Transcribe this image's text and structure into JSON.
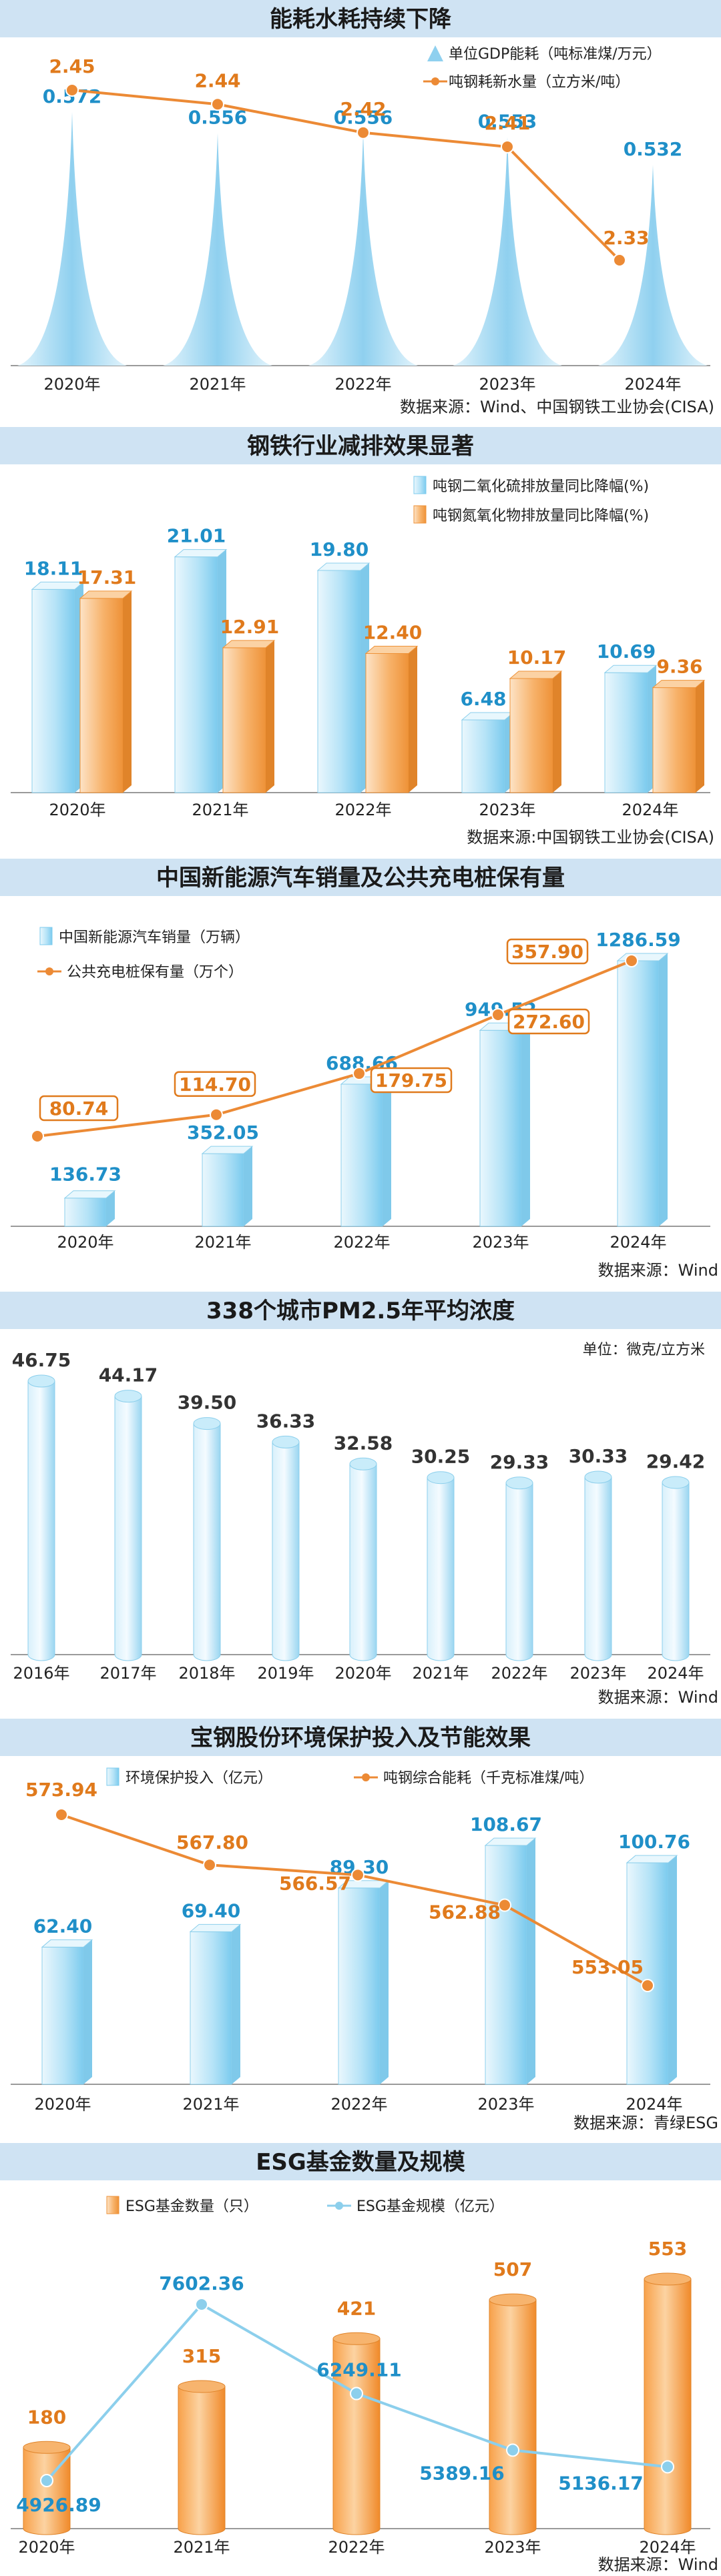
{
  "colors": {
    "title_bg": "#cfe3f3",
    "title_text": "#1a1a1a",
    "blue_label": "#1f8fc8",
    "orange_label": "#e07a1c",
    "orange_line": "#ec8a35",
    "light_blue_line": "#8ccfec",
    "axis": "#9a9a9a",
    "text": "#222222"
  },
  "chart_data": [
    {
      "id": "energy",
      "type": "area+line",
      "title": "能耗水耗持续下降",
      "categories": [
        "2020年",
        "2021年",
        "2022年",
        "2023年",
        "2024年"
      ],
      "series": [
        {
          "name": "单位GDP能耗(吨标准煤/万元)",
          "kind": "spike",
          "values": [
            0.572,
            0.556,
            0.556,
            0.553,
            0.532
          ]
        },
        {
          "name": "吨钢耗新水量(立方米/吨)",
          "kind": "line",
          "values": [
            2.45,
            2.44,
            2.42,
            2.41,
            2.33
          ]
        }
      ],
      "value_labels": [
        [
          "0.572",
          "0.556",
          "0.556",
          "0.553",
          "0.532"
        ],
        [
          "2.45",
          "2.44",
          "2.42",
          "2.41",
          "2.33"
        ]
      ],
      "source": "数据来源：Wind、中国钢铁工业协会(CISA)"
    },
    {
      "id": "emission",
      "type": "bar",
      "title": "钢铁行业减排效果显著",
      "categories": [
        "2020年",
        "2021年",
        "2022年",
        "2023年",
        "2024年"
      ],
      "series": [
        {
          "name": "吨钢二氧化硫排放量同比降幅(%)",
          "values": [
            18.11,
            21.01,
            19.8,
            6.48,
            10.69
          ]
        },
        {
          "name": "吨钢氮氧化物排放量同比降幅(%)",
          "values": [
            17.31,
            12.91,
            12.4,
            10.17,
            9.36
          ]
        }
      ],
      "value_labels": [
        [
          "18.11",
          "21.01",
          "19.80",
          "6.48",
          "10.69"
        ],
        [
          "17.31",
          "12.91",
          "12.40",
          "10.17",
          "9.36"
        ]
      ],
      "ylim": [
        0,
        22
      ],
      "source": "数据来源:中国钢铁工业协会(CISA)"
    },
    {
      "id": "nev",
      "type": "bar+line",
      "title": "中国新能源汽车销量及公共充电桩保有量",
      "categories": [
        "2020年",
        "2021年",
        "2022年",
        "2023年",
        "2024年"
      ],
      "series": [
        {
          "name": "中国新能源汽车销量(万辆)",
          "kind": "bar",
          "values": [
            136.73,
            352.05,
            688.66,
            949.52,
            1286.59
          ]
        },
        {
          "name": "公共充电桩保有量(万个)",
          "kind": "line",
          "values": [
            80.74,
            114.7,
            179.75,
            272.6,
            357.9
          ]
        }
      ],
      "value_labels": [
        [
          "136.73",
          "352.05",
          "688.66",
          "949.52",
          "1286.59"
        ],
        [
          "80.74",
          "114.70",
          "179.75",
          "272.60",
          "357.90"
        ]
      ],
      "source": "数据来源：Wind"
    },
    {
      "id": "pm25",
      "type": "bar",
      "title": "338个城市PM2.5年平均浓度",
      "unit": "单位：微克/立方米",
      "categories": [
        "2016年",
        "2017年",
        "2018年",
        "2019年",
        "2020年",
        "2021年",
        "2022年",
        "2023年",
        "2024年"
      ],
      "series": [
        {
          "name": "PM2.5年平均浓度",
          "values": [
            46.75,
            44.17,
            39.5,
            36.33,
            32.58,
            30.25,
            29.33,
            30.33,
            29.42
          ]
        }
      ],
      "value_labels": [
        [
          "46.75",
          "44.17",
          "39.50",
          "36.33",
          "32.58",
          "30.25",
          "29.33",
          "30.33",
          "29.42"
        ]
      ],
      "source": "数据来源：Wind"
    },
    {
      "id": "baosteel",
      "type": "bar+line",
      "title": "宝钢股份环境保护投入及节能效果",
      "categories": [
        "2020年",
        "2021年",
        "2022年",
        "2023年",
        "2024年"
      ],
      "series": [
        {
          "name": "环境保护投入(亿元)",
          "kind": "bar",
          "values": [
            62.4,
            69.4,
            89.3,
            108.67,
            100.76
          ]
        },
        {
          "name": "吨钢综合能耗(千克标准煤/吨)",
          "kind": "line",
          "values": [
            573.94,
            567.8,
            566.57,
            562.88,
            553.05
          ]
        }
      ],
      "value_labels": [
        [
          "62.40",
          "69.40",
          "89.30",
          "108.67",
          "100.76"
        ],
        [
          "573.94",
          "567.80",
          "566.57",
          "562.88",
          "553.05"
        ]
      ],
      "source": "数据来源：青绿ESG"
    },
    {
      "id": "esg",
      "type": "bar+line",
      "title": "ESG基金数量及规模",
      "categories": [
        "2020年",
        "2021年",
        "2022年",
        "2023年",
        "2024年"
      ],
      "series": [
        {
          "name": "ESG基金数量(只)",
          "kind": "bar",
          "values": [
            180,
            315,
            421,
            507,
            553
          ]
        },
        {
          "name": "ESG基金规模(亿元)",
          "kind": "line",
          "values": [
            4926.89,
            7602.36,
            6249.11,
            5389.16,
            5136.17
          ]
        }
      ],
      "value_labels": [
        [
          "180",
          "315",
          "421",
          "507",
          "553"
        ],
        [
          "4926.89",
          "7602.36",
          "6249.11",
          "5389.16",
          "5136.17"
        ]
      ],
      "source": "数据来源：Wind"
    }
  ],
  "legend_text": {
    "energy": [
      "单位GDP能耗（吨标准煤/万元）",
      "吨钢耗新水量（立方米/吨）"
    ],
    "emission": [
      "吨钢二氧化硫排放量同比降幅(%)",
      "吨钢氮氧化物排放量同比降幅(%)"
    ],
    "nev": [
      "中国新能源汽车销量（万辆）",
      "公共充电桩保有量（万个）"
    ],
    "baosteel": [
      "环境保护投入（亿元）",
      "吨钢综合能耗（千克标准煤/吨）"
    ],
    "esg": [
      "ESG基金数量（只）",
      "ESG基金规模（亿元）"
    ]
  }
}
